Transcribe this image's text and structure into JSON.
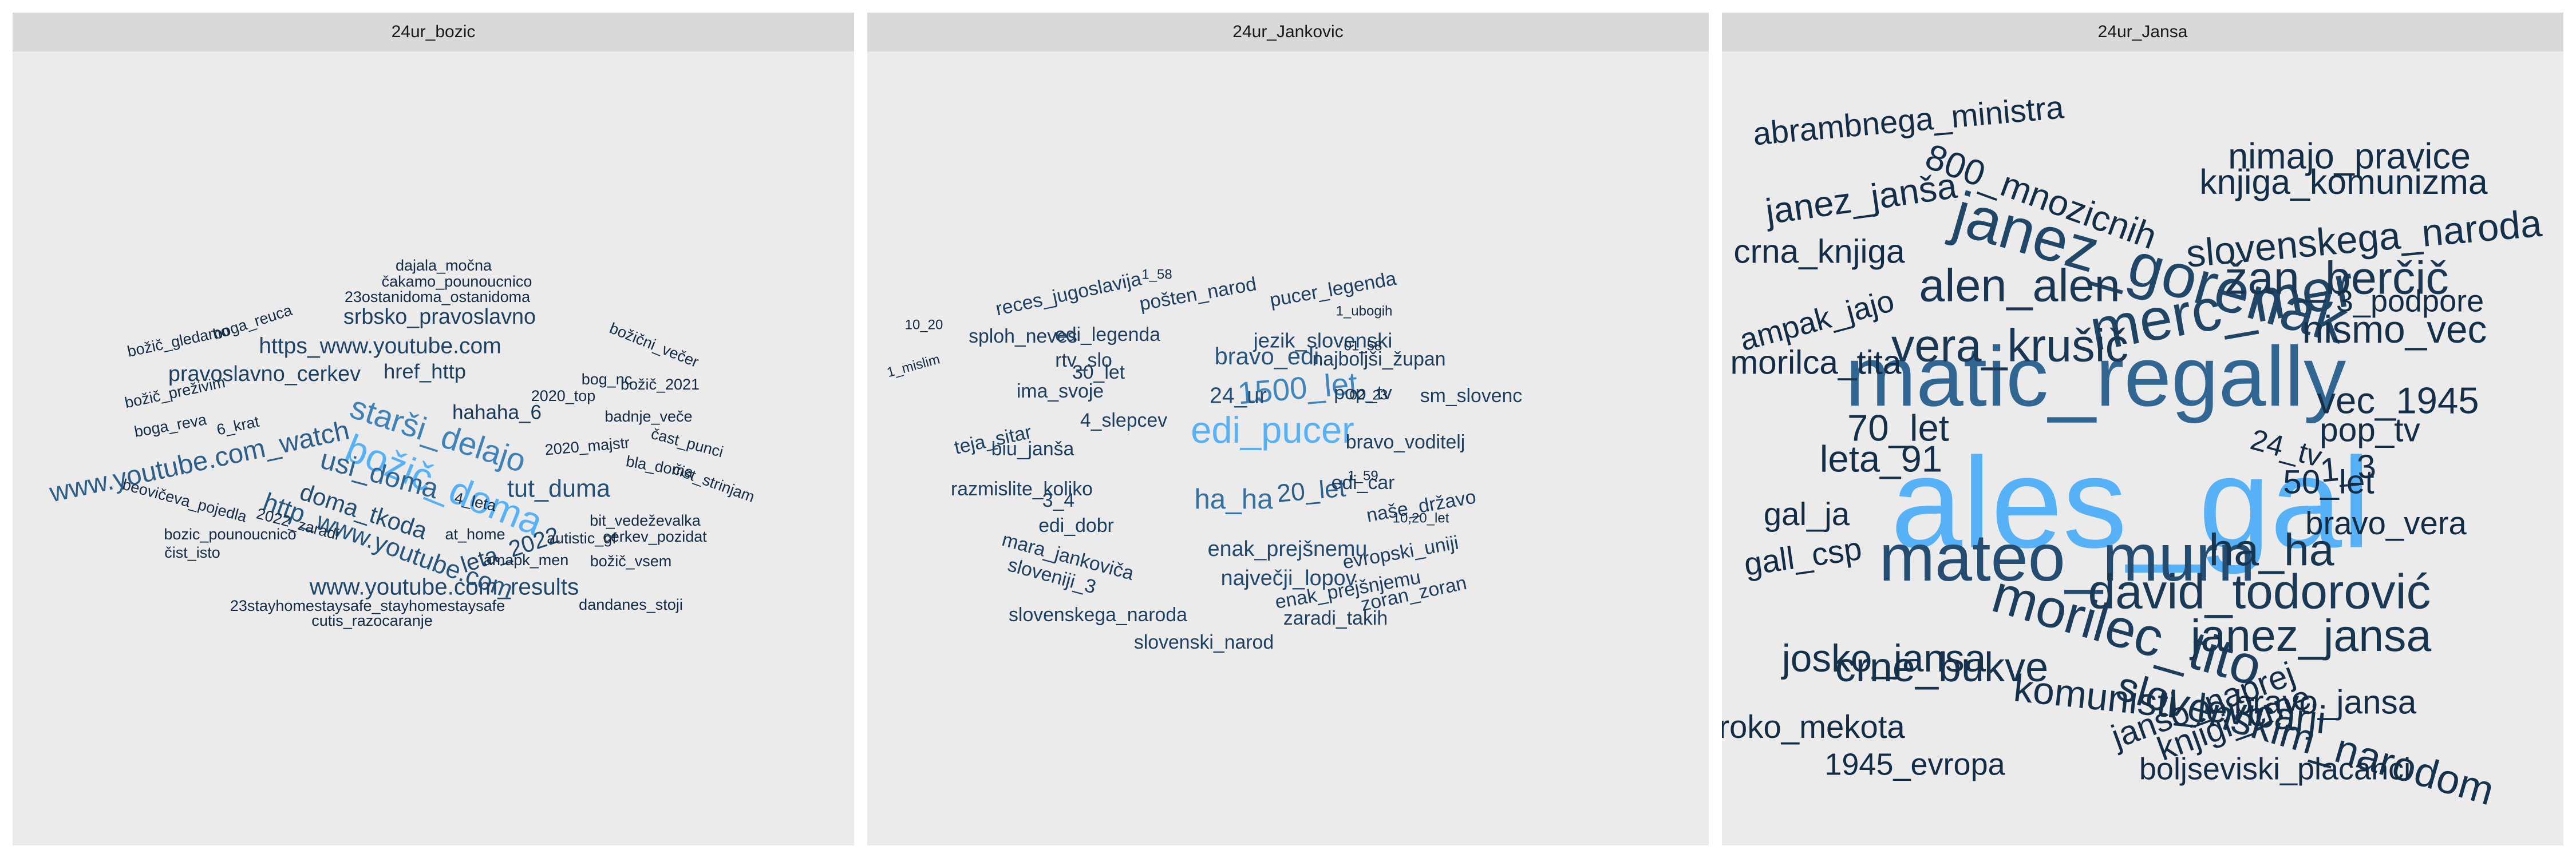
{
  "chart_data": [
    {
      "type": "wordcloud",
      "facet": "24ur_bozic",
      "color_scale": {
        "low": "#132b43",
        "high": "#56b1f7"
      },
      "words": [
        {
          "text": "božič_doma",
          "size": 5.0
        },
        {
          "text": "starši_delajo",
          "size": 4.2
        },
        {
          "text": "usi_doma",
          "size": 3.6
        },
        {
          "text": "www.youtube.com_watch",
          "size": 3.5
        },
        {
          "text": "http_www.youtube.com",
          "size": 3.3
        },
        {
          "text": "tut_duma",
          "size": 3.2
        },
        {
          "text": "doma_tkoda",
          "size": 3.1
        },
        {
          "text": "leta_2022",
          "size": 3.0
        },
        {
          "text": "www.youtube.com_results",
          "size": 3.0
        },
        {
          "text": "https_www.youtube.com",
          "size": 2.9
        },
        {
          "text": "srbsko_pravoslavno",
          "size": 2.8
        },
        {
          "text": "pravoslavno_cerkev",
          "size": 2.8
        },
        {
          "text": "href_http",
          "size": 2.7
        },
        {
          "text": "hahaha_6",
          "size": 2.6
        },
        {
          "text": "dajala_močna",
          "size": 2
        },
        {
          "text": "čakamo_pounoucnico",
          "size": 2
        },
        {
          "text": "23ostanidoma_ostanidoma",
          "size": 2
        },
        {
          "text": "boga_reuca",
          "size": 2
        },
        {
          "text": "božič_gledamo",
          "size": 2
        },
        {
          "text": "božič_preživim",
          "size": 2
        },
        {
          "text": "boga_reva",
          "size": 2
        },
        {
          "text": "6_krat",
          "size": 2
        },
        {
          "text": "beovičeva_pojedla",
          "size": 2
        },
        {
          "text": "2022_zaradi",
          "size": 2
        },
        {
          "text": "bozic_pounoucnico",
          "size": 2
        },
        {
          "text": "čist_isto",
          "size": 2
        },
        {
          "text": "božični_večer",
          "size": 2
        },
        {
          "text": "bog_nc",
          "size": 2
        },
        {
          "text": "božič_2021",
          "size": 2
        },
        {
          "text": "2020_top",
          "size": 2
        },
        {
          "text": "badnje_veče",
          "size": 2
        },
        {
          "text": "2020_majstr",
          "size": 2
        },
        {
          "text": "čast_punci",
          "size": 2
        },
        {
          "text": "bla_doma",
          "size": 2
        },
        {
          "text": "čist_strinjam",
          "size": 2
        },
        {
          "text": "4_leta",
          "size": 2
        },
        {
          "text": "at_home",
          "size": 2
        },
        {
          "text": "amapk_men",
          "size": 2
        },
        {
          "text": "autistic_gf",
          "size": 2
        },
        {
          "text": "bit_vedeževalka",
          "size": 2
        },
        {
          "text": "cerkev_pozidat",
          "size": 2
        },
        {
          "text": "božič_vsem",
          "size": 2
        },
        {
          "text": "23stayhomestaysafe_stayhomestaysafe",
          "size": 2
        },
        {
          "text": "cutis_razocaranje",
          "size": 2
        },
        {
          "text": "dandanes_stoji",
          "size": 2
        }
      ]
    },
    {
      "type": "wordcloud",
      "facet": "24ur_Jankovic",
      "color_scale": {
        "low": "#132b43",
        "high": "#56b1f7"
      },
      "words": [
        {
          "text": "edi_pucer",
          "size": 5.0
        },
        {
          "text": "1500_let",
          "size": 4.2
        },
        {
          "text": "ha_ha",
          "size": 3.8
        },
        {
          "text": "20_let",
          "size": 3.4
        },
        {
          "text": "bravo_edi",
          "size": 3.2
        },
        {
          "text": "24_ur",
          "size": 3.0
        },
        {
          "text": "največji_lopov",
          "size": 2.9
        },
        {
          "text": "enak_prejšnemu",
          "size": 2.9
        },
        {
          "text": "jezik_slovenski",
          "size": 2.8
        },
        {
          "text": "reces_jugoslavija",
          "size": 2.6
        },
        {
          "text": "pošten_narod",
          "size": 2.6
        },
        {
          "text": "pucer_legenda",
          "size": 2.6
        },
        {
          "text": "sploh_neves",
          "size": 2.6
        },
        {
          "text": "edi_legenda",
          "size": 2.6
        },
        {
          "text": "rtv_slo",
          "size": 2.6
        },
        {
          "text": "30_let",
          "size": 2.6
        },
        {
          "text": "najboljši_župan",
          "size": 2.6
        },
        {
          "text": "ima_svoje",
          "size": 2.6
        },
        {
          "text": "pop_tv",
          "size": 2.6
        },
        {
          "text": "sm_slovenc",
          "size": 2.6
        },
        {
          "text": "4_slepcev",
          "size": 2.6
        },
        {
          "text": "teja_sitar",
          "size": 2.6
        },
        {
          "text": "biu_janša",
          "size": 2.6
        },
        {
          "text": "bravo_voditelj",
          "size": 2.6
        },
        {
          "text": "razmislite_koliko",
          "size": 2.6
        },
        {
          "text": "3_4",
          "size": 2.6
        },
        {
          "text": "edi_car",
          "size": 2.6
        },
        {
          "text": "naše_državo",
          "size": 2.6
        },
        {
          "text": "edi_dobr",
          "size": 2.6
        },
        {
          "text": "mara_jankoviča",
          "size": 2.6
        },
        {
          "text": "evropski_uniji",
          "size": 2.6
        },
        {
          "text": "sloveniji_3",
          "size": 2.6
        },
        {
          "text": "enak_prejšnjemu",
          "size": 2.6
        },
        {
          "text": "zoran_zoran",
          "size": 2.6
        },
        {
          "text": "slovenskega_naroda",
          "size": 2.6
        },
        {
          "text": "zaradi_takih",
          "size": 2.6
        },
        {
          "text": "slovenski_narod",
          "size": 2.6
        },
        {
          "text": "1_58",
          "size": 1.8
        },
        {
          "text": "10_20",
          "size": 1.8
        },
        {
          "text": "1_ubogih",
          "size": 1.8
        },
        {
          "text": "1_mislim",
          "size": 1.8
        },
        {
          "text": "01_58",
          "size": 1.8
        },
        {
          "text": "02_23",
          "size": 1.8
        },
        {
          "text": "1_59",
          "size": 1.8
        },
        {
          "text": "10,20_let",
          "size": 1.8
        }
      ]
    },
    {
      "type": "wordcloud",
      "facet": "24ur_Jansa",
      "color_scale": {
        "low": "#132b43",
        "high": "#56b1f7"
      },
      "words": [
        {
          "text": "ales_gal",
          "size": 10.0
        },
        {
          "text": "matic_regally",
          "size": 6.6
        },
        {
          "text": "mateo_murn",
          "size": 5.2
        },
        {
          "text": "janez_gorenak",
          "size": 4.8
        },
        {
          "text": "merc_mer",
          "size": 4.6
        },
        {
          "text": "morilec_tito",
          "size": 4.2
        },
        {
          "text": "david_todorović",
          "size": 3.8
        },
        {
          "text": "vera_krušič",
          "size": 3.6
        },
        {
          "text": "alen_alen",
          "size": 3.6
        },
        {
          "text": "žan_berčič",
          "size": 3.6
        },
        {
          "text": "janez_jansa",
          "size": 3.5
        },
        {
          "text": "ha_ha",
          "size": 3.5
        },
        {
          "text": "crne_bukve",
          "size": 3.2
        },
        {
          "text": "slovenskim_narodom",
          "size": 3.2
        },
        {
          "text": "josko_jansa",
          "size": 3.0
        },
        {
          "text": "komunisti_levicarji",
          "size": 3.0
        },
        {
          "text": "slovenskega_naroda",
          "size": 3.0
        },
        {
          "text": "nismo_vec",
          "size": 3.0
        },
        {
          "text": "leta_91",
          "size": 2.9
        },
        {
          "text": "70_let",
          "size": 2.9
        },
        {
          "text": "vec_1945",
          "size": 2.9
        },
        {
          "text": "janez_janša",
          "size": 2.8
        },
        {
          "text": "800_mnozicnih",
          "size": 2.8
        },
        {
          "text": "nimajo_pravice",
          "size": 2.8
        },
        {
          "text": "knjiga_komunizma",
          "size": 2.7
        },
        {
          "text": "crna_knjiga",
          "size": 2.6
        },
        {
          "text": "abrambnega_ministra",
          "size": 2.5
        },
        {
          "text": "ampak_jajo",
          "size": 2.4
        },
        {
          "text": "morilca_tita",
          "size": 2.6
        },
        {
          "text": "gal_ja",
          "size": 2.5
        },
        {
          "text": "gall_csp",
          "size": 2.5
        },
        {
          "text": "1_3",
          "size": 2.6
        },
        {
          "text": "24_tv",
          "size": 2.3
        },
        {
          "text": "50_let",
          "size": 2.6
        },
        {
          "text": "pop_tv",
          "size": 2.6
        },
        {
          "text": "3_podpore",
          "size": 2.4
        },
        {
          "text": "bravo_vera",
          "size": 2.5
        },
        {
          "text": "bravo_jansa",
          "size": 2.6
        },
        {
          "text": "roko_mekota",
          "size": 2.5
        },
        {
          "text": "janso_naprej",
          "size": 2.6
        },
        {
          "text": "knjigi_crne",
          "size": 2.6
        },
        {
          "text": "1945_evropa",
          "size": 2.4
        },
        {
          "text": "boljseviski_placanci",
          "size": 2.4
        }
      ]
    }
  ]
}
